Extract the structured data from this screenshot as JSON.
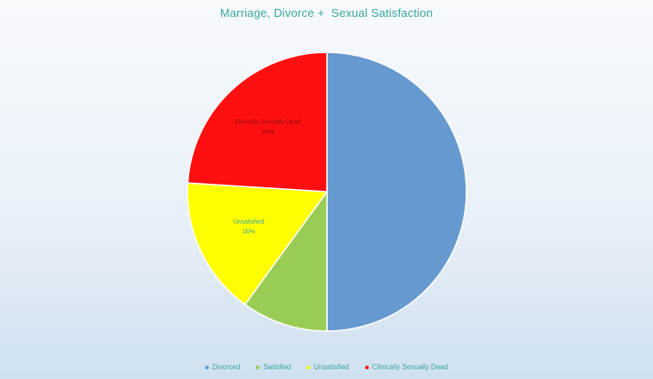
{
  "chart_data": {
    "type": "pie",
    "title": "Marriage, Divorce +  Sexual Satisfaction",
    "categories": [
      "Divorced",
      "Satisfied",
      "Unsatisfied",
      "Clinically Sexually Dead"
    ],
    "values": [
      50,
      10,
      16,
      24
    ],
    "colors": [
      "#6699d0",
      "#99cc55",
      "#ffff00",
      "#ff0f0f"
    ],
    "data_labels": [
      {
        "category": "Unsatisfied",
        "text": "Unsatisfied\n16%"
      },
      {
        "category": "Clinically Sexually Dead",
        "text": "Clinically Sexually Dead\n24%"
      }
    ],
    "legend_position": "bottom"
  }
}
